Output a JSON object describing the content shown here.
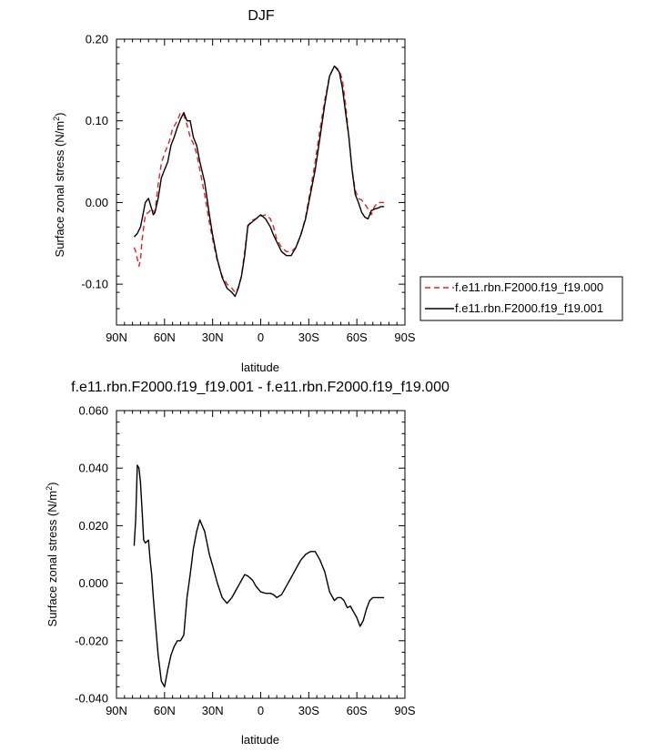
{
  "chart_data": [
    {
      "type": "line",
      "title": "DJF",
      "xlabel": "latitude",
      "ylabel": "Surface zonal stress (N/m",
      "ylabel_sup": "2",
      "ylabel_close": ")",
      "xlim": [
        90,
        -90
      ],
      "ylim": [
        -0.15,
        0.2
      ],
      "x_ticks": [
        90,
        60,
        30,
        0,
        -30,
        -60,
        -90
      ],
      "x_tick_labels": [
        "90N",
        "60N",
        "30N",
        "0",
        "30S",
        "60S",
        "90S"
      ],
      "y_ticks": [
        0.2,
        0.1,
        0.0,
        -0.1
      ],
      "y_tick_labels": [
        "0.20",
        "0.10",
        "0.00",
        "-0.10"
      ],
      "grid": false,
      "legend_position": "right, outside plot",
      "series": [
        {
          "name": "f.e11.rbn.F2000.f19_f19.000",
          "color": "#e8201e",
          "dash": "dashed",
          "x": [
            79,
            78,
            76,
            75,
            74,
            72,
            70,
            69,
            68,
            66,
            64,
            62,
            60,
            57,
            55,
            52,
            50,
            48,
            46,
            44,
            42,
            40,
            38,
            35,
            32,
            30,
            27,
            24,
            21,
            18,
            16,
            14,
            12,
            10,
            8,
            6,
            3,
            0,
            -3,
            -6,
            -8,
            -10,
            -13,
            -16,
            -19,
            -22,
            -25,
            -28,
            -31,
            -34,
            -37,
            -40,
            -43,
            -46,
            -49,
            -51,
            -53,
            -55,
            -57,
            -59,
            -61,
            -63,
            -65,
            -67,
            -69,
            -71,
            -73,
            -75,
            -77
          ],
          "y": [
            -0.055,
            -0.06,
            -0.078,
            -0.07,
            -0.045,
            -0.015,
            -0.012,
            -0.01,
            -0.008,
            -0.012,
            0.022,
            0.048,
            0.06,
            0.075,
            0.09,
            0.1,
            0.11,
            0.107,
            0.095,
            0.08,
            0.072,
            0.06,
            0.04,
            0.01,
            -0.025,
            -0.045,
            -0.072,
            -0.09,
            -0.1,
            -0.105,
            -0.11,
            -0.105,
            -0.09,
            -0.06,
            -0.03,
            -0.022,
            -0.02,
            -0.017,
            -0.015,
            -0.02,
            -0.03,
            -0.045,
            -0.055,
            -0.06,
            -0.06,
            -0.055,
            -0.04,
            -0.018,
            0.015,
            0.05,
            0.09,
            0.125,
            0.155,
            0.167,
            0.162,
            0.15,
            0.12,
            0.08,
            0.04,
            0.015,
            0.005,
            0.003,
            -0.002,
            -0.008,
            -0.015,
            -0.005,
            0.0,
            0.0,
            0.0
          ]
        },
        {
          "name": "f.e11.rbn.F2000.f19_f19.001",
          "color": "#000000",
          "dash": "solid",
          "x": [
            79,
            77,
            75,
            74,
            72,
            70,
            68,
            67,
            66,
            64,
            62,
            60,
            58,
            56,
            54,
            52,
            50,
            48,
            46,
            44,
            42,
            40,
            38,
            35,
            32,
            30,
            27,
            24,
            21,
            18,
            16,
            14,
            12,
            10,
            8,
            6,
            3,
            0,
            -3,
            -6,
            -8,
            -10,
            -13,
            -16,
            -19,
            -22,
            -25,
            -28,
            -31,
            -34,
            -37,
            -40,
            -43,
            -46,
            -49,
            -51,
            -53,
            -55,
            -57,
            -59,
            -61,
            -63,
            -65,
            -67,
            -69,
            -71,
            -73,
            -75,
            -77
          ],
          "y": [
            -0.042,
            -0.038,
            -0.03,
            -0.02,
            0.0,
            0.005,
            -0.008,
            -0.015,
            -0.012,
            0.005,
            0.03,
            0.04,
            0.05,
            0.07,
            0.08,
            0.092,
            0.102,
            0.11,
            0.1,
            0.1,
            0.08,
            0.07,
            0.05,
            0.025,
            -0.015,
            -0.04,
            -0.07,
            -0.092,
            -0.105,
            -0.11,
            -0.115,
            -0.105,
            -0.09,
            -0.065,
            -0.028,
            -0.025,
            -0.02,
            -0.015,
            -0.02,
            -0.03,
            -0.04,
            -0.048,
            -0.06,
            -0.065,
            -0.065,
            -0.055,
            -0.04,
            -0.02,
            0.01,
            0.04,
            0.08,
            0.12,
            0.155,
            0.167,
            0.16,
            0.14,
            0.11,
            0.08,
            0.04,
            0.01,
            0.0,
            -0.012,
            -0.018,
            -0.02,
            -0.01,
            -0.008,
            -0.007,
            -0.005,
            -0.005
          ]
        }
      ]
    },
    {
      "type": "line",
      "title": "f.e11.rbn.F2000.f19_f19.001 - f.e11.rbn.F2000.f19_f19.000",
      "xlabel": "latitude",
      "ylabel": "Surface zonal stress (N/m",
      "ylabel_sup": "2",
      "ylabel_close": ")",
      "xlim": [
        90,
        -90
      ],
      "ylim": [
        -0.04,
        0.06
      ],
      "x_ticks": [
        90,
        60,
        30,
        0,
        -30,
        -60,
        -90
      ],
      "x_tick_labels": [
        "90N",
        "60N",
        "30N",
        "0",
        "30S",
        "60S",
        "90S"
      ],
      "y_ticks": [
        0.06,
        0.04,
        0.02,
        0.0,
        -0.02,
        -0.04
      ],
      "y_tick_labels": [
        "0.060",
        "0.040",
        "0.020",
        "0.000",
        "-0.020",
        "-0.040"
      ],
      "grid": false,
      "series": [
        {
          "color": "#000000",
          "dash": "solid",
          "x": [
            79,
            78,
            77,
            76,
            75,
            74,
            73,
            72,
            70,
            69,
            68,
            67,
            66,
            64,
            62,
            60,
            58,
            56,
            54,
            52,
            50,
            48,
            46,
            44,
            42,
            40,
            38,
            35,
            32,
            30,
            27,
            24,
            21,
            18,
            16,
            14,
            12,
            10,
            8,
            5,
            3,
            0,
            -3,
            -6,
            -8,
            -10,
            -13,
            -16,
            -19,
            -22,
            -25,
            -28,
            -31,
            -34,
            -37,
            -40,
            -43,
            -46,
            -48,
            -50,
            -52,
            -54,
            -56,
            -58,
            -60,
            -62,
            -64,
            -66,
            -68,
            -70,
            -71,
            -72,
            -73,
            -75,
            -77
          ],
          "y": [
            0.013,
            0.022,
            0.041,
            0.04,
            0.035,
            0.025,
            0.015,
            0.014,
            0.015,
            0.008,
            0.003,
            -0.005,
            -0.012,
            -0.025,
            -0.034,
            -0.036,
            -0.03,
            -0.025,
            -0.022,
            -0.02,
            -0.02,
            -0.018,
            -0.005,
            0.003,
            0.012,
            0.018,
            0.022,
            0.018,
            0.01,
            0.006,
            0.0,
            -0.005,
            -0.007,
            -0.005,
            -0.003,
            -0.001,
            0.001,
            0.003,
            0.0025,
            0.001,
            -0.001,
            -0.003,
            -0.0035,
            -0.0035,
            -0.004,
            -0.005,
            -0.004,
            -0.001,
            0.002,
            0.005,
            0.008,
            0.01,
            0.011,
            0.011,
            0.008,
            0.004,
            -0.003,
            -0.006,
            -0.005,
            -0.005,
            -0.006,
            -0.0085,
            -0.008,
            -0.01,
            -0.012,
            -0.015,
            -0.013,
            -0.009,
            -0.006,
            -0.005,
            -0.005,
            -0.005,
            -0.005,
            -0.005,
            -0.005
          ]
        }
      ]
    }
  ]
}
